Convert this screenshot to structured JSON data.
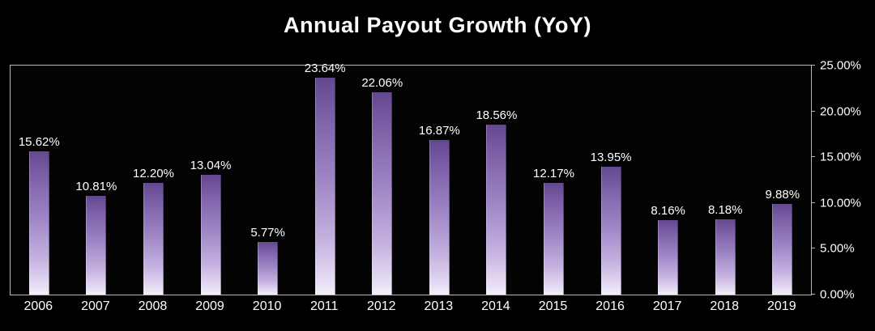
{
  "chart_data": {
    "type": "bar",
    "title": "Annual Payout Growth (YoY)",
    "categories": [
      "2006",
      "2007",
      "2008",
      "2009",
      "2010",
      "2011",
      "2012",
      "2013",
      "2014",
      "2015",
      "2016",
      "2017",
      "2018",
      "2019"
    ],
    "values": [
      15.62,
      10.81,
      12.2,
      13.04,
      5.77,
      23.64,
      22.06,
      16.87,
      18.56,
      12.17,
      13.95,
      8.16,
      8.18,
      9.88
    ],
    "data_labels": [
      "15.62%",
      "10.81%",
      "12.20%",
      "13.04%",
      "5.77%",
      "23.64%",
      "22.06%",
      "16.87%",
      "18.56%",
      "12.17%",
      "13.95%",
      "8.16%",
      "8.18%",
      "9.88%"
    ],
    "xlabel": "",
    "ylabel": "",
    "ylim": [
      0,
      25
    ],
    "yticks": [
      0,
      5,
      10,
      15,
      20,
      25
    ],
    "ytick_labels": [
      "0.00%",
      "5.00%",
      "10.00%",
      "15.00%",
      "20.00%",
      "25.00%"
    ],
    "ytick_side": "right",
    "grid": false,
    "legend": false,
    "colors": {
      "background": "#000000",
      "bar_gradient_top": "#64488f",
      "bar_gradient_bottom": "#f4effb",
      "text": "#ffffff",
      "plot_border": "#b9b9b9"
    }
  }
}
